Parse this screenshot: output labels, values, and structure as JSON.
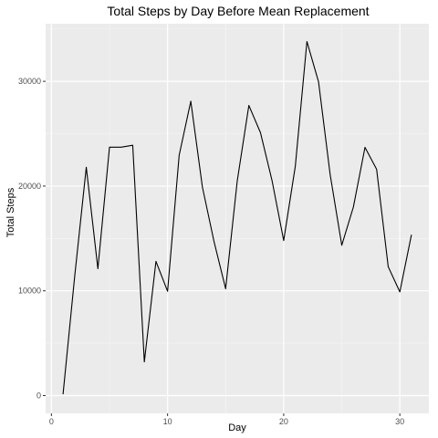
{
  "chart_data": {
    "type": "line",
    "title": "Total Steps by Day Before Mean Replacement",
    "xlabel": "Day",
    "ylabel": "Total Steps",
    "xlim": [
      -0.5,
      32.5
    ],
    "ylim": [
      -1700,
      35500
    ],
    "x_ticks": [
      0,
      10,
      20,
      30
    ],
    "x_minor_ticks": [
      5,
      15,
      25
    ],
    "y_ticks": [
      0,
      10000,
      20000,
      30000
    ],
    "y_minor_ticks": [
      5000,
      15000,
      25000,
      35000
    ],
    "grid": true,
    "colors": {
      "panel_background": "#ebebeb",
      "grid_major": "#ffffff",
      "grid_minor": "#f5f5f5",
      "line": "#000000",
      "tick_label": "#4d4d4d"
    },
    "series": [
      {
        "name": "Total Steps",
        "x": [
          1,
          2,
          3,
          4,
          5,
          6,
          7,
          8,
          9,
          10,
          11,
          12,
          13,
          14,
          15,
          16,
          17,
          18,
          19,
          20,
          21,
          22,
          23,
          24,
          25,
          26,
          27,
          28,
          29,
          30,
          31
        ],
        "values": [
          126,
          11352,
          21800,
          12116,
          23710,
          23710,
          23900,
          3219,
          12810,
          9955,
          22950,
          28100,
          19900,
          14700,
          10200,
          20500,
          27700,
          25100,
          20500,
          14800,
          21900,
          33800,
          29950,
          21100,
          14350,
          18000,
          23700,
          21600,
          12300,
          9900,
          15350
        ]
      }
    ]
  }
}
